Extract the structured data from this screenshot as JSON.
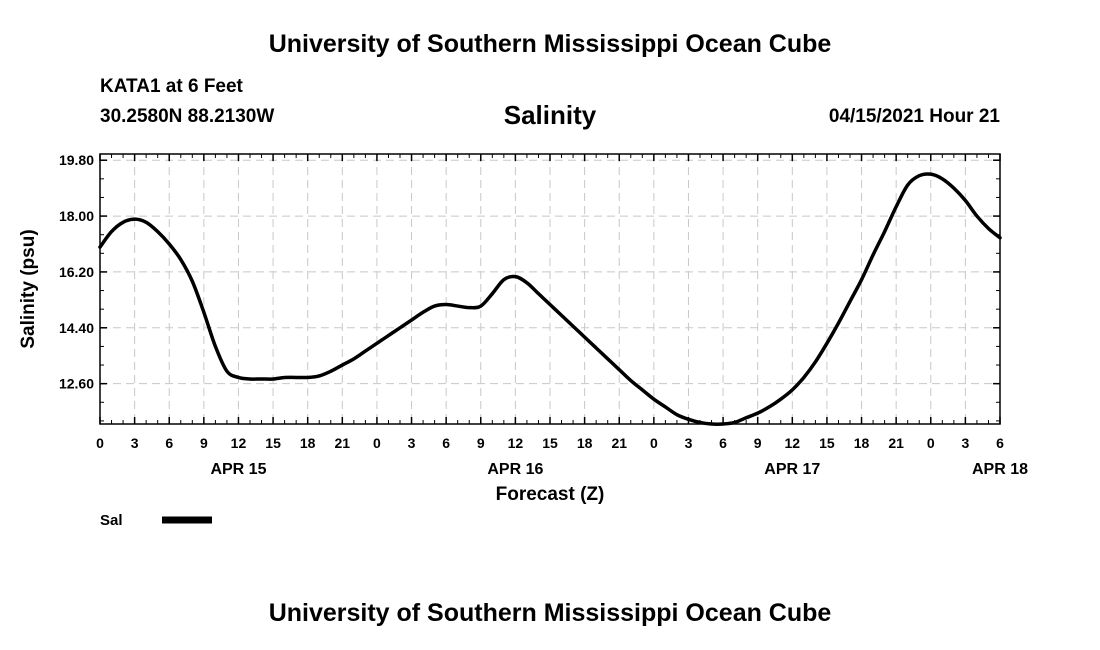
{
  "header": {
    "title": "University of Southern Mississippi Ocean Cube",
    "station": "KATA1 at 6 Feet",
    "coordinates": "30.2580N  88.2130W",
    "variable": "Salinity",
    "run_time": "04/15/2021 Hour 21"
  },
  "footer": {
    "title": "University of Southern Mississippi Ocean Cube"
  },
  "chart_data": {
    "type": "line",
    "ylabel": "Salinity (psu)",
    "xlabel": "Forecast (Z)",
    "xlim": [
      0,
      78
    ],
    "ylim": [
      11.3,
      20.0
    ],
    "yticks": [
      "19.80",
      "18.00",
      "16.20",
      "14.40",
      "12.60"
    ],
    "ytick_values": [
      19.8,
      18.0,
      16.2,
      14.4,
      12.6
    ],
    "xtick_labels": [
      "0",
      "3",
      "6",
      "9",
      "12",
      "15",
      "18",
      "21",
      "0",
      "3",
      "6",
      "9",
      "12",
      "15",
      "18",
      "21",
      "0",
      "3",
      "6",
      "9",
      "12",
      "15",
      "18",
      "21",
      "0",
      "3",
      "6"
    ],
    "date_labels": [
      {
        "label": "APR 15",
        "hour": 12
      },
      {
        "label": "APR 16",
        "hour": 36
      },
      {
        "label": "APR 17",
        "hour": 60
      },
      {
        "label": "APR 18",
        "hour": 78
      }
    ],
    "grid": true,
    "legend": [
      {
        "name": "Sal",
        "color": "#000000"
      }
    ],
    "series": [
      {
        "name": "Sal",
        "color": "#000000",
        "x": [
          0,
          1,
          2,
          3,
          4,
          5,
          6,
          7,
          8,
          9,
          10,
          11,
          12,
          13,
          14,
          15,
          16,
          17,
          18,
          19,
          20,
          21,
          22,
          23,
          24,
          25,
          26,
          27,
          28,
          29,
          30,
          31,
          32,
          33,
          34,
          35,
          36,
          37,
          38,
          39,
          40,
          41,
          42,
          43,
          44,
          45,
          46,
          47,
          48,
          49,
          50,
          51,
          52,
          53,
          54,
          55,
          56,
          57,
          58,
          59,
          60,
          61,
          62,
          63,
          64,
          65,
          66,
          67,
          68,
          69,
          70,
          71,
          72,
          73,
          74,
          75,
          76,
          77,
          78
        ],
        "y": [
          17.0,
          17.5,
          17.8,
          17.9,
          17.8,
          17.5,
          17.1,
          16.6,
          15.9,
          14.9,
          13.8,
          13.0,
          12.8,
          12.75,
          12.75,
          12.75,
          12.8,
          12.8,
          12.8,
          12.85,
          13.0,
          13.2,
          13.4,
          13.65,
          13.9,
          14.15,
          14.4,
          14.65,
          14.9,
          15.1,
          15.15,
          15.1,
          15.05,
          15.1,
          15.5,
          15.95,
          16.05,
          15.85,
          15.5,
          15.15,
          14.8,
          14.45,
          14.1,
          13.75,
          13.4,
          13.05,
          12.7,
          12.4,
          12.1,
          11.85,
          11.6,
          11.45,
          11.35,
          11.3,
          11.3,
          11.35,
          11.5,
          11.65,
          11.85,
          12.1,
          12.4,
          12.8,
          13.3,
          13.9,
          14.55,
          15.25,
          15.95,
          16.75,
          17.5,
          18.3,
          19.0,
          19.3,
          19.35,
          19.2,
          18.9,
          18.5,
          18.0,
          17.6,
          17.3
        ]
      }
    ]
  }
}
